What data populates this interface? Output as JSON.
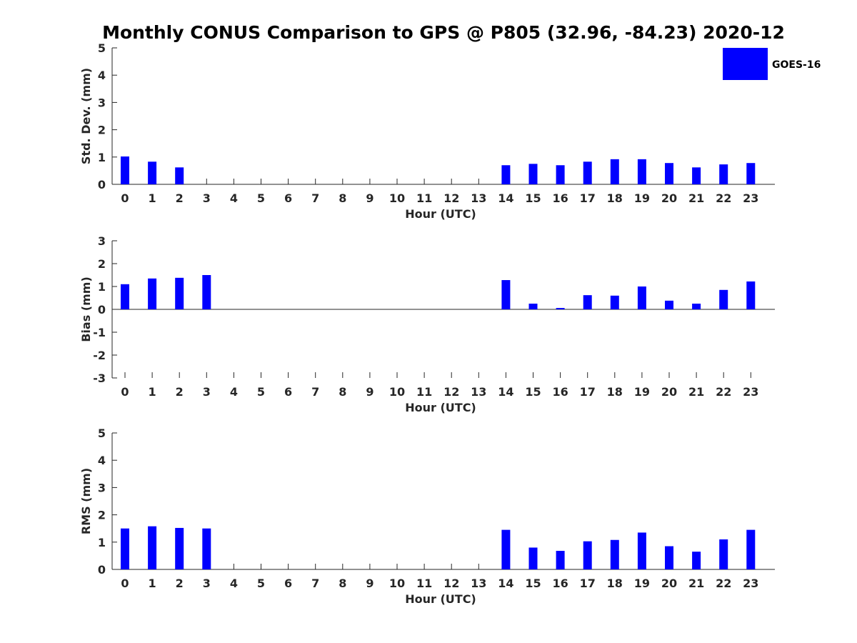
{
  "title": "Monthly CONUS Comparison to GPS @ P805 (32.96, -84.23) 2020-12",
  "legend": {
    "label": "GOES-16",
    "color": "#0000ff",
    "placement": "top-right"
  },
  "chart_data": [
    {
      "type": "bar",
      "name": "std-dev",
      "xlabel": "Hour (UTC)",
      "ylabel": "Std. Dev. (mm)",
      "ylim": [
        0,
        5
      ],
      "yticks": [
        "0",
        "1",
        "2",
        "3",
        "4",
        "5"
      ],
      "categories": [
        "0",
        "1",
        "2",
        "3",
        "4",
        "5",
        "6",
        "7",
        "8",
        "9",
        "10",
        "11",
        "12",
        "13",
        "14",
        "15",
        "16",
        "17",
        "18",
        "19",
        "20",
        "21",
        "22",
        "23"
      ],
      "series": [
        {
          "name": "GOES-16",
          "color": "#0000ff",
          "values": [
            1.02,
            0.83,
            0.62,
            null,
            null,
            null,
            null,
            null,
            null,
            null,
            null,
            null,
            null,
            null,
            0.7,
            0.75,
            0.7,
            0.83,
            0.92,
            0.92,
            0.78,
            0.62,
            0.73,
            0.78
          ]
        }
      ]
    },
    {
      "type": "bar",
      "name": "bias",
      "xlabel": "Hour (UTC)",
      "ylabel": "Bias (mm)",
      "ylim": [
        -3,
        3
      ],
      "yticks": [
        "-3",
        "-2",
        "-1",
        "0",
        "1",
        "2",
        "3"
      ],
      "categories": [
        "0",
        "1",
        "2",
        "3",
        "4",
        "5",
        "6",
        "7",
        "8",
        "9",
        "10",
        "11",
        "12",
        "13",
        "14",
        "15",
        "16",
        "17",
        "18",
        "19",
        "20",
        "21",
        "22",
        "23"
      ],
      "series": [
        {
          "name": "GOES-16",
          "color": "#0000ff",
          "values": [
            1.1,
            1.35,
            1.38,
            1.5,
            null,
            null,
            null,
            null,
            null,
            null,
            null,
            null,
            null,
            null,
            1.28,
            0.25,
            0.06,
            0.62,
            0.6,
            1.0,
            0.38,
            0.25,
            0.85,
            1.22
          ]
        }
      ]
    },
    {
      "type": "bar",
      "name": "rms",
      "xlabel": "Hour (UTC)",
      "ylabel": "RMS (mm)",
      "ylim": [
        0,
        5
      ],
      "yticks": [
        "0",
        "1",
        "2",
        "3",
        "4",
        "5"
      ],
      "categories": [
        "0",
        "1",
        "2",
        "3",
        "4",
        "5",
        "6",
        "7",
        "8",
        "9",
        "10",
        "11",
        "12",
        "13",
        "14",
        "15",
        "16",
        "17",
        "18",
        "19",
        "20",
        "21",
        "22",
        "23"
      ],
      "series": [
        {
          "name": "GOES-16",
          "color": "#0000ff",
          "values": [
            1.5,
            1.58,
            1.52,
            1.5,
            null,
            null,
            null,
            null,
            null,
            null,
            null,
            null,
            null,
            null,
            1.45,
            0.8,
            0.68,
            1.03,
            1.08,
            1.35,
            0.85,
            0.65,
            1.1,
            1.45
          ]
        }
      ]
    }
  ]
}
